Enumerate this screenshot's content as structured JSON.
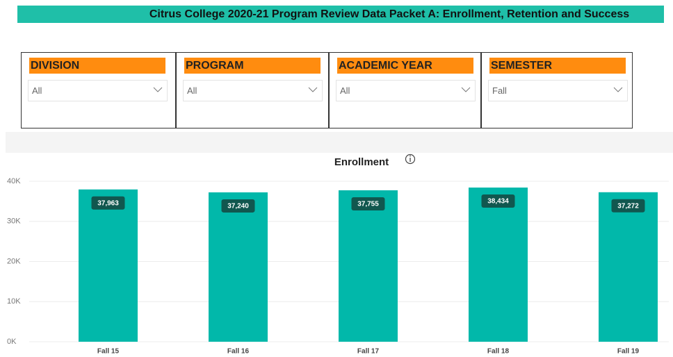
{
  "header": {
    "title": "Citrus College 2020-21 Program Review Data Packet A: Enrollment, Retention and Success"
  },
  "filters": [
    {
      "label": "DIVISION",
      "value": "All"
    },
    {
      "label": "PROGRAM",
      "value": "All"
    },
    {
      "label": "ACADEMIC YEAR",
      "value": "All"
    },
    {
      "label": "SEMESTER",
      "value": "Fall"
    }
  ],
  "chart_data": {
    "type": "bar",
    "title": "Enrollment",
    "categories": [
      "Fall 15",
      "Fall 16",
      "Fall 17",
      "Fall 18",
      "Fall 19"
    ],
    "values": [
      37963,
      37240,
      37755,
      38434,
      37272
    ],
    "value_labels": [
      "37,963",
      "37,240",
      "37,755",
      "38,434",
      "37,272"
    ],
    "color": "#01b8aa",
    "ylim": [
      0,
      40000
    ],
    "yticks": [
      {
        "value": 0,
        "label": "0K"
      },
      {
        "value": 10000,
        "label": "10K"
      },
      {
        "value": 20000,
        "label": "20K"
      },
      {
        "value": 30000,
        "label": "30K"
      },
      {
        "value": 40000,
        "label": "40K"
      }
    ],
    "grid": true
  }
}
